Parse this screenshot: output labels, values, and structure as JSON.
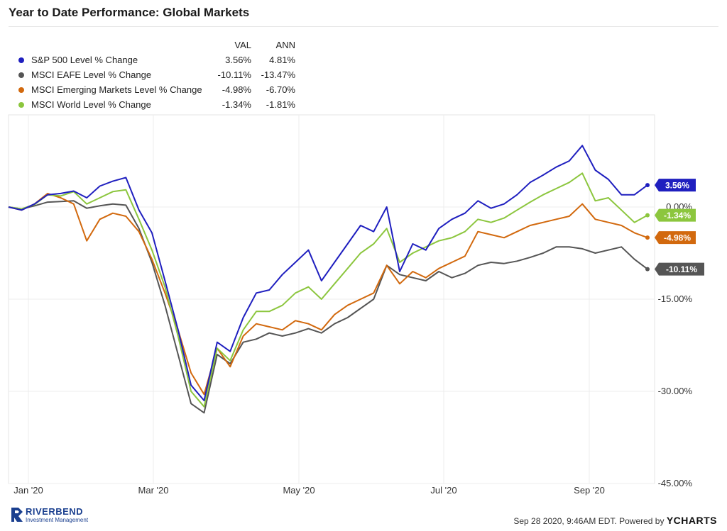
{
  "title": "Year to Date Performance: Global Markets",
  "legend": {
    "headers": [
      "VAL",
      "ANN"
    ],
    "rows": [
      {
        "name": "S&P 500 Level % Change",
        "val": "3.56%",
        "ann": "4.81%",
        "color": "#1f1fbf"
      },
      {
        "name": "MSCI EAFE Level % Change",
        "val": "-10.11%",
        "ann": "-13.47%",
        "color": "#555555"
      },
      {
        "name": "MSCI Emerging Markets Level % Change",
        "val": "-4.98%",
        "ann": "-6.70%",
        "color": "#d2690e"
      },
      {
        "name": "MSCI World Level % Change",
        "val": "-1.34%",
        "ann": "-1.81%",
        "color": "#8cc63e"
      }
    ]
  },
  "footer": {
    "logo_name": "RIVERBEND",
    "logo_sub": "Investment Management",
    "timestamp": "Sep 28 2020, 9:46AM EDT.  Powered by",
    "brand": "YCHARTS"
  },
  "chart_data": {
    "type": "line",
    "x_ticks": [
      "Jan '20",
      "Mar '20",
      "May '20",
      "Jul '20",
      "Sep '20"
    ],
    "y_ticks": [
      "0.00%",
      "-15.00%",
      "-30.00%",
      "-45.00%"
    ],
    "ylim": [
      -45,
      15
    ],
    "grid": true,
    "legend_position": "top-left",
    "series": [
      {
        "name": "S&P 500 Level % Change",
        "end_label": "3.56%",
        "color": "#1f1fbf",
        "values": [
          0,
          -0.5,
          0.5,
          2,
          2.2,
          2.6,
          1.5,
          3.4,
          4.2,
          4.8,
          -0.5,
          -4.2,
          -12,
          -20,
          -29,
          -31.5,
          -22,
          -23.5,
          -18,
          -14,
          -13.5,
          -11,
          -9,
          -7,
          -12,
          -9,
          -6,
          -3,
          -4,
          0,
          -10.5,
          -6,
          -7,
          -3.5,
          -2,
          -1,
          1,
          -0.2,
          0.5,
          2,
          4,
          5.2,
          6.5,
          7.5,
          10,
          6,
          4.5,
          2,
          2,
          3.56
        ]
      },
      {
        "name": "MSCI EAFE Level % Change",
        "end_label": "-10.11%",
        "color": "#555555",
        "values": [
          0,
          -0.3,
          0.2,
          0.8,
          0.9,
          1.0,
          -0.2,
          0.2,
          0.5,
          0.3,
          -3.5,
          -9,
          -16,
          -24,
          -32,
          -33.5,
          -24,
          -25.5,
          -22,
          -21.5,
          -20.5,
          -21,
          -20.5,
          -19.8,
          -20.5,
          -19,
          -18,
          -16.5,
          -15,
          -9.5,
          -11,
          -11.5,
          -12,
          -10.5,
          -11.5,
          -10.8,
          -9.5,
          -9,
          -9.2,
          -8.8,
          -8.2,
          -7.5,
          -6.5,
          -6.5,
          -6.8,
          -7.5,
          -7,
          -6.5,
          -8.5,
          -10.11
        ]
      },
      {
        "name": "MSCI Emerging Markets Level % Change",
        "end_label": "-4.98%",
        "color": "#d2690e",
        "values": [
          0,
          -0.5,
          0.5,
          2.2,
          1.5,
          0.5,
          -5.5,
          -2,
          -1,
          -1.5,
          -4,
          -8.5,
          -14,
          -20,
          -27,
          -30.5,
          -23,
          -26,
          -21,
          -19,
          -19.5,
          -20,
          -18.5,
          -19,
          -20,
          -17.5,
          -16,
          -15,
          -14,
          -9.5,
          -12.5,
          -10.5,
          -11.5,
          -10,
          -9,
          -8,
          -4,
          -4.5,
          -5,
          -4,
          -3,
          -2.5,
          -2,
          -1.5,
          0.5,
          -2,
          -2.5,
          -3,
          -4.2,
          -4.98
        ]
      },
      {
        "name": "MSCI World Level % Change",
        "end_label": "-1.34%",
        "color": "#8cc63e",
        "values": [
          0,
          -0.3,
          0.4,
          2.0,
          1.8,
          2.5,
          0.5,
          1.5,
          2.5,
          2.8,
          -2,
          -7,
          -13,
          -21,
          -30,
          -32.5,
          -23,
          -25,
          -20,
          -17,
          -17,
          -16,
          -14,
          -13,
          -15,
          -12.5,
          -10,
          -7.5,
          -6,
          -3.5,
          -9,
          -7.5,
          -6.5,
          -5.5,
          -5,
          -4,
          -2,
          -2.5,
          -1.8,
          -0.5,
          0.8,
          2,
          3,
          4,
          5.5,
          1,
          1.5,
          -0.5,
          -2.5,
          -1.34
        ]
      }
    ]
  }
}
